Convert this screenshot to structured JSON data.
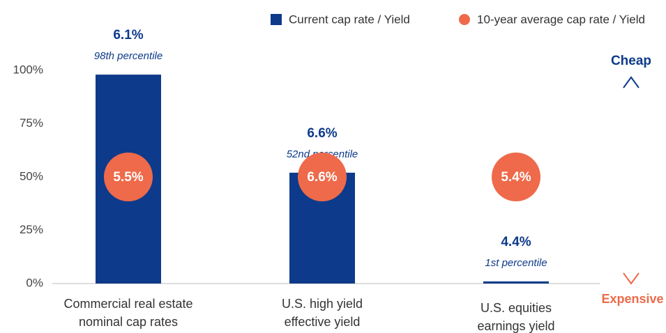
{
  "chart_data": {
    "type": "bar",
    "categories": [
      [
        "Commercial real estate",
        "nominal cap rates"
      ],
      [
        "U.S. high yield",
        "effective yield"
      ],
      [
        "U.S. equities",
        "earnings yield"
      ]
    ],
    "series": [
      {
        "name": "Current cap rate / Yield",
        "color": "#0d3a8a",
        "values": [
          98,
          52,
          1
        ],
        "value_labels": [
          "98th percentile",
          "52nd percentile",
          "1st percentile"
        ],
        "yields": [
          "6.1%",
          "6.6%",
          "4.4%"
        ]
      },
      {
        "name": "10-year average cap rate / Yield",
        "color": "#ee6a4a",
        "values": [
          5.5,
          6.6,
          5.4
        ],
        "value_labels": [
          "5.5%",
          "6.6%",
          "5.4%"
        ],
        "percentile": 50
      }
    ],
    "ylim": [
      0,
      100
    ],
    "yticks": [
      {
        "value": 0,
        "label": "0%"
      },
      {
        "value": 25,
        "label": "25%"
      },
      {
        "value": 50,
        "label": "50%"
      },
      {
        "value": 75,
        "label": "75%"
      },
      {
        "value": 100,
        "label": "100%"
      }
    ],
    "grid": false,
    "annotations": {
      "top": "Cheap",
      "bottom": "Expensive"
    }
  }
}
